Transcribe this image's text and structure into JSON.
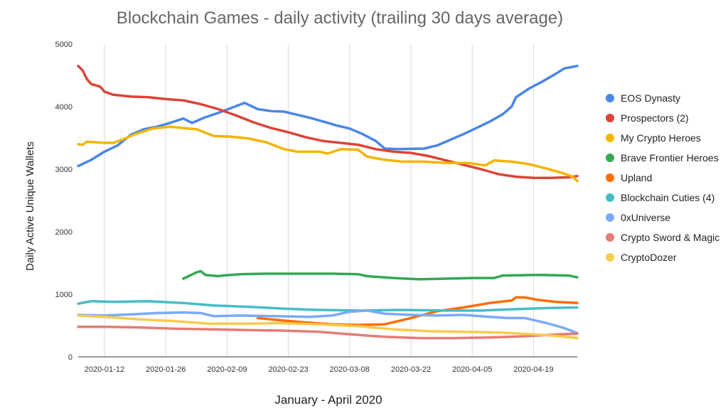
{
  "chart_data": {
    "type": "line",
    "title": "Blockchain Games - daily activity (trailing 30 days average)",
    "xlabel": "January - April 2020",
    "ylabel": "Daily Active Unique Wallets",
    "x_range": [
      "2020-01-06",
      "2020-04-29"
    ],
    "ylim": [
      0,
      5000
    ],
    "y_ticks": [
      "0",
      "1000",
      "2000",
      "3000",
      "4000",
      "5000"
    ],
    "x_ticks": [
      "2020-01-12",
      "2020-01-26",
      "2020-02-09",
      "2020-02-23",
      "2020-03-08",
      "2020-03-22",
      "2020-04-05",
      "2020-04-19"
    ],
    "grid": "vertical",
    "legend_position": "right",
    "series": [
      {
        "name": "EOS Dynasty",
        "color": "#4a86e8",
        "points": [
          [
            "2020-01-06",
            3050
          ],
          [
            "2020-01-09",
            3150
          ],
          [
            "2020-01-12",
            3280
          ],
          [
            "2020-01-15",
            3380
          ],
          [
            "2020-01-18",
            3550
          ],
          [
            "2020-01-21",
            3640
          ],
          [
            "2020-01-24",
            3680
          ],
          [
            "2020-01-27",
            3740
          ],
          [
            "2020-01-30",
            3810
          ],
          [
            "2020-02-01",
            3740
          ],
          [
            "2020-02-04",
            3830
          ],
          [
            "2020-02-07",
            3900
          ],
          [
            "2020-02-10",
            3980
          ],
          [
            "2020-02-13",
            4060
          ],
          [
            "2020-02-16",
            3960
          ],
          [
            "2020-02-19",
            3930
          ],
          [
            "2020-02-22",
            3920
          ],
          [
            "2020-02-25",
            3870
          ],
          [
            "2020-02-28",
            3820
          ],
          [
            "2020-03-02",
            3760
          ],
          [
            "2020-03-05",
            3700
          ],
          [
            "2020-03-08",
            3650
          ],
          [
            "2020-03-11",
            3560
          ],
          [
            "2020-03-14",
            3450
          ],
          [
            "2020-03-16",
            3330
          ],
          [
            "2020-03-19",
            3320
          ],
          [
            "2020-03-22",
            3325
          ],
          [
            "2020-03-25",
            3330
          ],
          [
            "2020-03-28",
            3380
          ],
          [
            "2020-03-31",
            3470
          ],
          [
            "2020-04-03",
            3560
          ],
          [
            "2020-04-06",
            3660
          ],
          [
            "2020-04-09",
            3760
          ],
          [
            "2020-04-12",
            3880
          ],
          [
            "2020-04-14",
            4000
          ],
          [
            "2020-04-15",
            4150
          ],
          [
            "2020-04-18",
            4290
          ],
          [
            "2020-04-21",
            4400
          ],
          [
            "2020-04-24",
            4520
          ],
          [
            "2020-04-26",
            4610
          ],
          [
            "2020-04-29",
            4650
          ]
        ]
      },
      {
        "name": "Prospectors (2)",
        "color": "#db4437",
        "points": [
          [
            "2020-01-06",
            4650
          ],
          [
            "2020-01-07",
            4580
          ],
          [
            "2020-01-08",
            4440
          ],
          [
            "2020-01-09",
            4360
          ],
          [
            "2020-01-11",
            4320
          ],
          [
            "2020-01-12",
            4240
          ],
          [
            "2020-01-14",
            4190
          ],
          [
            "2020-01-18",
            4160
          ],
          [
            "2020-01-22",
            4150
          ],
          [
            "2020-01-26",
            4120
          ],
          [
            "2020-01-30",
            4100
          ],
          [
            "2020-02-03",
            4040
          ],
          [
            "2020-02-07",
            3960
          ],
          [
            "2020-02-11",
            3860
          ],
          [
            "2020-02-15",
            3750
          ],
          [
            "2020-02-19",
            3660
          ],
          [
            "2020-02-23",
            3590
          ],
          [
            "2020-02-27",
            3510
          ],
          [
            "2020-03-02",
            3450
          ],
          [
            "2020-03-06",
            3420
          ],
          [
            "2020-03-10",
            3390
          ],
          [
            "2020-03-14",
            3320
          ],
          [
            "2020-03-18",
            3280
          ],
          [
            "2020-03-22",
            3260
          ],
          [
            "2020-03-26",
            3210
          ],
          [
            "2020-03-30",
            3140
          ],
          [
            "2020-04-03",
            3070
          ],
          [
            "2020-04-07",
            3000
          ],
          [
            "2020-04-11",
            2920
          ],
          [
            "2020-04-15",
            2880
          ],
          [
            "2020-04-19",
            2860
          ],
          [
            "2020-04-23",
            2860
          ],
          [
            "2020-04-27",
            2870
          ],
          [
            "2020-04-29",
            2890
          ]
        ]
      },
      {
        "name": "My Crypto Heroes",
        "color": "#f4b400",
        "points": [
          [
            "2020-01-06",
            3400
          ],
          [
            "2020-01-07",
            3390
          ],
          [
            "2020-01-08",
            3440
          ],
          [
            "2020-01-12",
            3420
          ],
          [
            "2020-01-14",
            3420
          ],
          [
            "2020-01-16",
            3470
          ],
          [
            "2020-01-19",
            3560
          ],
          [
            "2020-01-23",
            3650
          ],
          [
            "2020-01-27",
            3680
          ],
          [
            "2020-01-31",
            3650
          ],
          [
            "2020-02-02",
            3640
          ],
          [
            "2020-02-06",
            3530
          ],
          [
            "2020-02-10",
            3520
          ],
          [
            "2020-02-14",
            3490
          ],
          [
            "2020-02-18",
            3430
          ],
          [
            "2020-02-22",
            3320
          ],
          [
            "2020-02-25",
            3280
          ],
          [
            "2020-03-01",
            3280
          ],
          [
            "2020-03-03",
            3250
          ],
          [
            "2020-03-06",
            3320
          ],
          [
            "2020-03-10",
            3310
          ],
          [
            "2020-03-12",
            3200
          ],
          [
            "2020-03-16",
            3150
          ],
          [
            "2020-03-20",
            3120
          ],
          [
            "2020-03-25",
            3120
          ],
          [
            "2020-03-30",
            3100
          ],
          [
            "2020-04-04",
            3100
          ],
          [
            "2020-04-08",
            3060
          ],
          [
            "2020-04-10",
            3140
          ],
          [
            "2020-04-14",
            3120
          ],
          [
            "2020-04-18",
            3080
          ],
          [
            "2020-04-22",
            3010
          ],
          [
            "2020-04-26",
            2930
          ],
          [
            "2020-04-28",
            2880
          ],
          [
            "2020-04-29",
            2810
          ]
        ]
      },
      {
        "name": "Brave Frontier Heroes",
        "color": "#34a853",
        "points": [
          [
            "2020-01-30",
            1250
          ],
          [
            "2020-02-02",
            1350
          ],
          [
            "2020-02-03",
            1370
          ],
          [
            "2020-02-04",
            1310
          ],
          [
            "2020-02-07",
            1290
          ],
          [
            "2020-02-08",
            1300
          ],
          [
            "2020-02-12",
            1320
          ],
          [
            "2020-02-18",
            1330
          ],
          [
            "2020-02-25",
            1330
          ],
          [
            "2020-03-04",
            1330
          ],
          [
            "2020-03-10",
            1320
          ],
          [
            "2020-03-12",
            1290
          ],
          [
            "2020-03-18",
            1260
          ],
          [
            "2020-03-24",
            1240
          ],
          [
            "2020-03-30",
            1250
          ],
          [
            "2020-04-05",
            1260
          ],
          [
            "2020-04-10",
            1260
          ],
          [
            "2020-04-12",
            1300
          ],
          [
            "2020-04-20",
            1310
          ],
          [
            "2020-04-27",
            1300
          ],
          [
            "2020-04-29",
            1270
          ]
        ]
      },
      {
        "name": "Upland",
        "color": "#ff6d01",
        "points": [
          [
            "2020-02-16",
            620
          ],
          [
            "2020-02-19",
            600
          ],
          [
            "2020-02-22",
            580
          ],
          [
            "2020-02-27",
            550
          ],
          [
            "2020-03-04",
            520
          ],
          [
            "2020-03-10",
            510
          ],
          [
            "2020-03-16",
            520
          ],
          [
            "2020-03-22",
            620
          ],
          [
            "2020-03-28",
            730
          ],
          [
            "2020-04-03",
            790
          ],
          [
            "2020-04-09",
            860
          ],
          [
            "2020-04-14",
            900
          ],
          [
            "2020-04-15",
            950
          ],
          [
            "2020-04-17",
            950
          ],
          [
            "2020-04-20",
            910
          ],
          [
            "2020-04-24",
            880
          ],
          [
            "2020-04-29",
            860
          ]
        ]
      },
      {
        "name": "Blockchain Cuties (4)",
        "color": "#46bdc6",
        "points": [
          [
            "2020-01-06",
            850
          ],
          [
            "2020-01-09",
            890
          ],
          [
            "2020-01-14",
            880
          ],
          [
            "2020-01-22",
            890
          ],
          [
            "2020-01-30",
            860
          ],
          [
            "2020-02-06",
            820
          ],
          [
            "2020-02-14",
            800
          ],
          [
            "2020-02-22",
            770
          ],
          [
            "2020-03-01",
            750
          ],
          [
            "2020-03-10",
            740
          ],
          [
            "2020-03-20",
            750
          ],
          [
            "2020-03-30",
            740
          ],
          [
            "2020-04-07",
            740
          ],
          [
            "2020-04-14",
            760
          ],
          [
            "2020-04-22",
            780
          ],
          [
            "2020-04-29",
            790
          ]
        ]
      },
      {
        "name": "0xUniverse",
        "color": "#7baaf7",
        "points": [
          [
            "2020-01-06",
            670
          ],
          [
            "2020-01-12",
            660
          ],
          [
            "2020-01-18",
            680
          ],
          [
            "2020-01-24",
            700
          ],
          [
            "2020-01-30",
            710
          ],
          [
            "2020-02-03",
            700
          ],
          [
            "2020-02-06",
            650
          ],
          [
            "2020-02-12",
            660
          ],
          [
            "2020-02-20",
            650
          ],
          [
            "2020-02-28",
            640
          ],
          [
            "2020-03-04",
            660
          ],
          [
            "2020-03-08",
            720
          ],
          [
            "2020-03-12",
            740
          ],
          [
            "2020-03-16",
            690
          ],
          [
            "2020-03-22",
            670
          ],
          [
            "2020-03-28",
            660
          ],
          [
            "2020-04-03",
            670
          ],
          [
            "2020-04-09",
            640
          ],
          [
            "2020-04-13",
            620
          ],
          [
            "2020-04-17",
            620
          ],
          [
            "2020-04-22",
            540
          ],
          [
            "2020-04-26",
            460
          ],
          [
            "2020-04-29",
            380
          ]
        ]
      },
      {
        "name": "Crypto Sword & Magic",
        "color": "#e67c73",
        "points": [
          [
            "2020-01-06",
            480
          ],
          [
            "2020-01-12",
            480
          ],
          [
            "2020-01-20",
            470
          ],
          [
            "2020-01-28",
            450
          ],
          [
            "2020-02-05",
            440
          ],
          [
            "2020-02-13",
            430
          ],
          [
            "2020-02-21",
            420
          ],
          [
            "2020-03-01",
            400
          ],
          [
            "2020-03-08",
            360
          ],
          [
            "2020-03-16",
            320
          ],
          [
            "2020-03-24",
            300
          ],
          [
            "2020-04-01",
            300
          ],
          [
            "2020-04-09",
            310
          ],
          [
            "2020-04-17",
            330
          ],
          [
            "2020-04-25",
            360
          ],
          [
            "2020-04-29",
            370
          ]
        ]
      },
      {
        "name": "CryptoDozer",
        "color": "#f7cb4d",
        "points": [
          [
            "2020-01-06",
            660
          ],
          [
            "2020-01-12",
            640
          ],
          [
            "2020-01-20",
            600
          ],
          [
            "2020-01-28",
            570
          ],
          [
            "2020-02-05",
            530
          ],
          [
            "2020-02-13",
            530
          ],
          [
            "2020-02-21",
            540
          ],
          [
            "2020-03-01",
            520
          ],
          [
            "2020-03-10",
            490
          ],
          [
            "2020-03-18",
            440
          ],
          [
            "2020-03-26",
            410
          ],
          [
            "2020-04-03",
            400
          ],
          [
            "2020-04-11",
            390
          ],
          [
            "2020-04-19",
            360
          ],
          [
            "2020-04-25",
            330
          ],
          [
            "2020-04-29",
            300
          ]
        ]
      }
    ]
  }
}
